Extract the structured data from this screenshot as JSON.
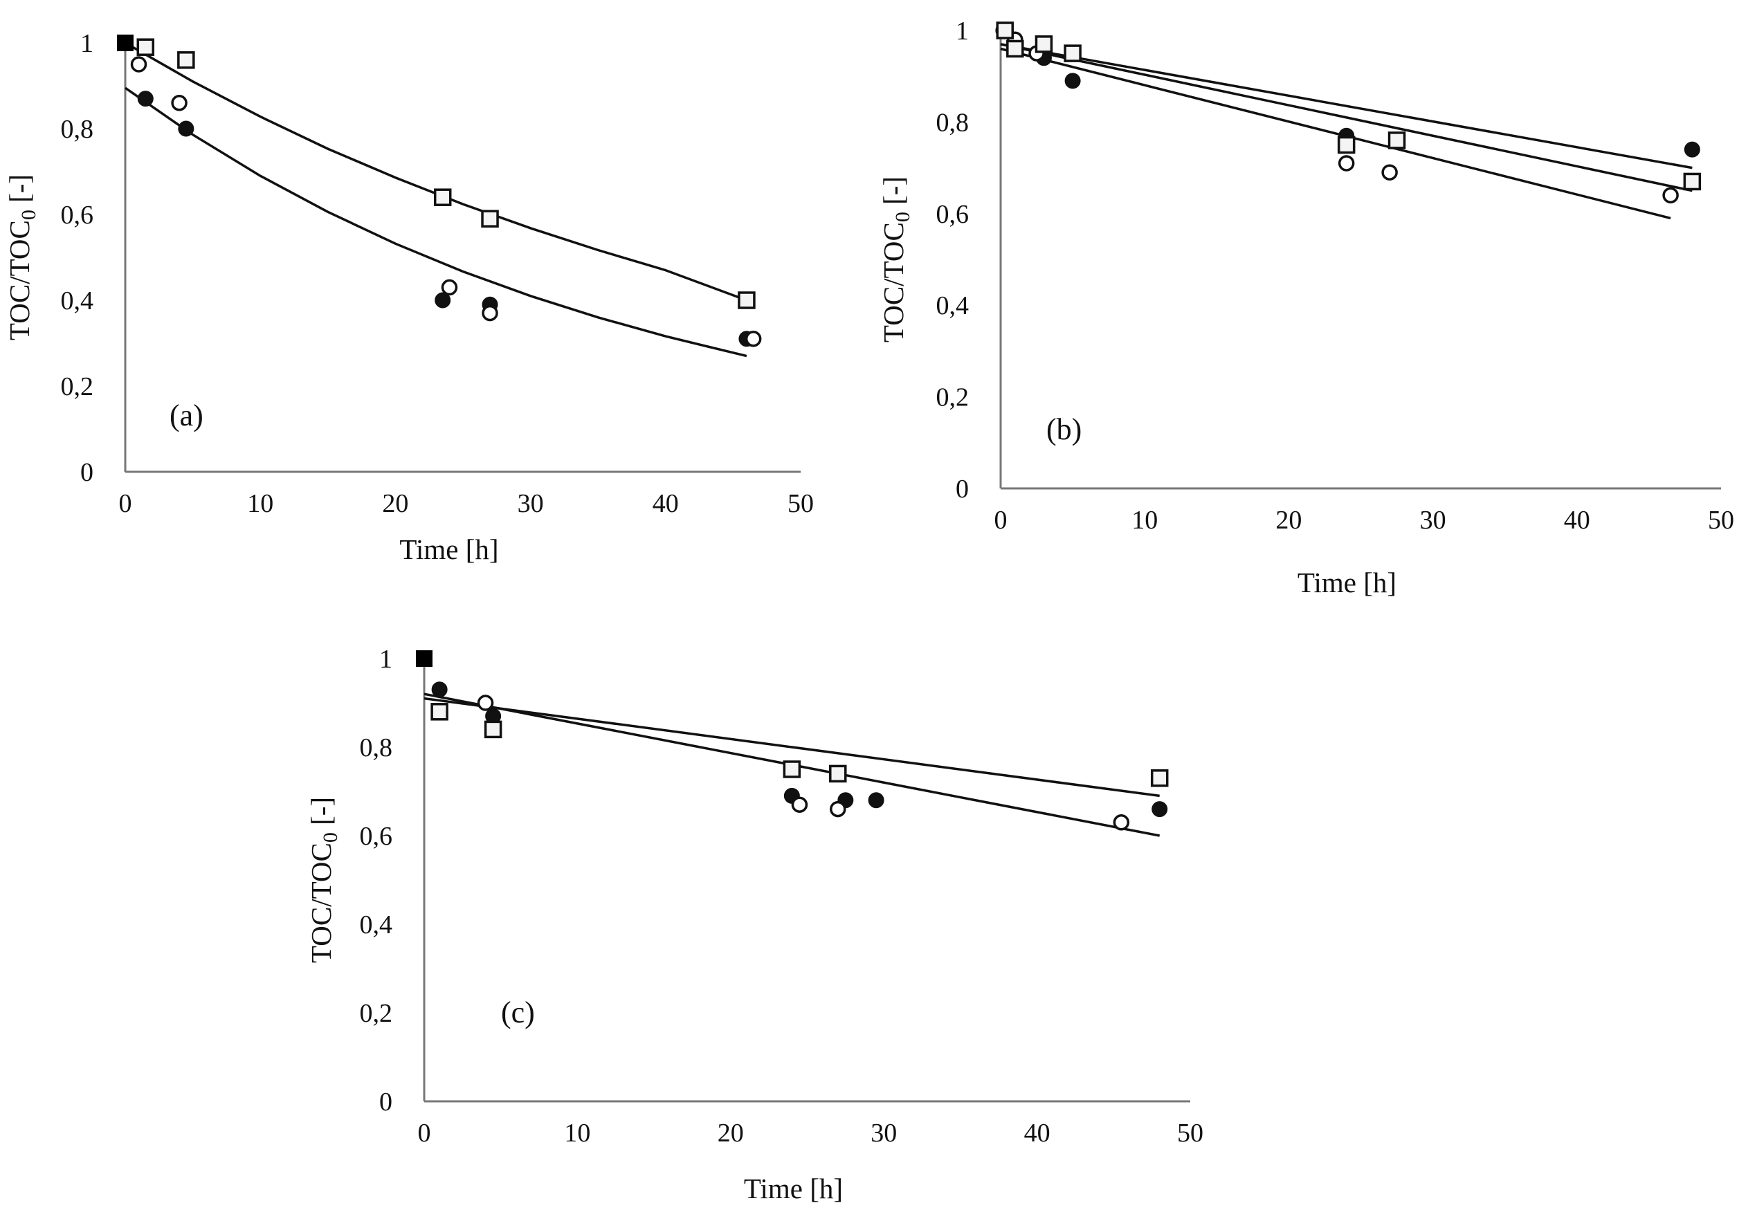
{
  "chart_data": [
    {
      "type": "scatter",
      "panel_label": "(a)",
      "xlabel": "Time [h]",
      "ylabel_main": "TOC/TOC",
      "ylabel_sub": "0",
      "ylabel_tail": " [-]",
      "xlim": [
        0,
        50
      ],
      "ylim": [
        0,
        1
      ],
      "x_ticks": [
        {
          "value": 0,
          "label": "0"
        },
        {
          "value": 10,
          "label": "10"
        },
        {
          "value": 20,
          "label": "20"
        },
        {
          "value": 30,
          "label": "30"
        },
        {
          "value": 40,
          "label": "40"
        },
        {
          "value": 50,
          "label": "50"
        }
      ],
      "y_ticks": [
        {
          "value": 0,
          "label": "0"
        },
        {
          "value": 0.2,
          "label": "0,2"
        },
        {
          "value": 0.4,
          "label": "0,4"
        },
        {
          "value": 0.6,
          "label": "0,6"
        },
        {
          "value": 0.8,
          "label": "0,8"
        },
        {
          "value": 1,
          "label": "1"
        }
      ],
      "series": [
        {
          "name": "filled circles",
          "marker": "circle-filled",
          "x": [
            1.5,
            4.5,
            23.5,
            27,
            46
          ],
          "y": [
            0.87,
            0.8,
            0.4,
            0.39,
            0.31
          ]
        },
        {
          "name": "open circles",
          "marker": "circle-open",
          "x": [
            1,
            4,
            24,
            27,
            46.5
          ],
          "y": [
            0.95,
            0.86,
            0.43,
            0.37,
            0.31
          ]
        },
        {
          "name": "open squares",
          "marker": "square-open",
          "x": [
            1.5,
            4.5,
            23.5,
            27,
            46
          ],
          "y": [
            0.99,
            0.96,
            0.64,
            0.59,
            0.4
          ]
        },
        {
          "name": "initial point",
          "marker": "square-filled",
          "x": [
            0
          ],
          "y": [
            1
          ]
        }
      ],
      "fit_lines": [
        {
          "name": "fit upper",
          "x": [
            0,
            5,
            10,
            15,
            20,
            25,
            30,
            35,
            40,
            46
          ],
          "y": [
            1.0,
            0.91,
            0.828,
            0.753,
            0.686,
            0.624,
            0.568,
            0.517,
            0.47,
            0.4
          ]
        },
        {
          "name": "fit lower",
          "x": [
            0,
            5,
            10,
            15,
            20,
            25,
            30,
            35,
            40,
            46
          ],
          "y": [
            0.895,
            0.786,
            0.69,
            0.606,
            0.532,
            0.467,
            0.41,
            0.36,
            0.316,
            0.27
          ]
        }
      ]
    },
    {
      "type": "scatter",
      "panel_label": "(b)",
      "xlabel": "Time [h]",
      "ylabel_main": "TOC/TOC",
      "ylabel_sub": "0",
      "ylabel_tail": " [-]",
      "xlim": [
        0,
        50
      ],
      "ylim": [
        0,
        1
      ],
      "x_ticks": [
        {
          "value": 0,
          "label": "0"
        },
        {
          "value": 10,
          "label": "10"
        },
        {
          "value": 20,
          "label": "20"
        },
        {
          "value": 30,
          "label": "30"
        },
        {
          "value": 40,
          "label": "40"
        },
        {
          "value": 50,
          "label": "50"
        }
      ],
      "y_ticks": [
        {
          "value": 0,
          "label": "0"
        },
        {
          "value": 0.2,
          "label": "0,2"
        },
        {
          "value": 0.4,
          "label": "0,4"
        },
        {
          "value": 0.6,
          "label": "0,6"
        },
        {
          "value": 0.8,
          "label": "0,8"
        },
        {
          "value": 1,
          "label": "1"
        }
      ],
      "series": [
        {
          "name": "filled circles",
          "marker": "circle-filled",
          "x": [
            1,
            3,
            5,
            24,
            48
          ],
          "y": [
            0.96,
            0.94,
            0.89,
            0.77,
            0.74
          ]
        },
        {
          "name": "open circles",
          "marker": "circle-open",
          "x": [
            0.2,
            1,
            2.5,
            24,
            27,
            46.5
          ],
          "y": [
            1.0,
            0.98,
            0.95,
            0.71,
            0.69,
            0.64
          ]
        },
        {
          "name": "open squares",
          "marker": "square-open",
          "x": [
            0.3,
            1,
            3,
            5,
            24,
            27.5,
            48
          ],
          "y": [
            1.0,
            0.96,
            0.97,
            0.95,
            0.75,
            0.76,
            0.67
          ]
        }
      ],
      "fit_lines": [
        {
          "name": "fit 1",
          "x": [
            0,
            48
          ],
          "y": [
            0.97,
            0.7
          ]
        },
        {
          "name": "fit 2",
          "x": [
            0,
            48
          ],
          "y": [
            0.97,
            0.65
          ]
        },
        {
          "name": "fit 3",
          "x": [
            0,
            46.5
          ],
          "y": [
            0.96,
            0.59
          ]
        }
      ]
    },
    {
      "type": "scatter",
      "panel_label": "(c)",
      "xlabel": "Time [h]",
      "ylabel_main": "TOC/TOC",
      "ylabel_sub": "0",
      "ylabel_tail": " [-]",
      "xlim": [
        0,
        50
      ],
      "ylim": [
        0,
        1
      ],
      "x_ticks": [
        {
          "value": 0,
          "label": "0"
        },
        {
          "value": 10,
          "label": "10"
        },
        {
          "value": 20,
          "label": "20"
        },
        {
          "value": 30,
          "label": "30"
        },
        {
          "value": 40,
          "label": "40"
        },
        {
          "value": 50,
          "label": "50"
        }
      ],
      "y_ticks": [
        {
          "value": 0,
          "label": "0"
        },
        {
          "value": 0.2,
          "label": "0,2"
        },
        {
          "value": 0.4,
          "label": "0,4"
        },
        {
          "value": 0.6,
          "label": "0,6"
        },
        {
          "value": 0.8,
          "label": "0,8"
        },
        {
          "value": 1,
          "label": "1"
        }
      ],
      "series": [
        {
          "name": "filled circles",
          "marker": "circle-filled",
          "x": [
            1,
            4.5,
            24,
            27.5,
            29.5,
            48
          ],
          "y": [
            0.93,
            0.87,
            0.69,
            0.68,
            0.68,
            0.66
          ]
        },
        {
          "name": "open circles",
          "marker": "circle-open",
          "x": [
            4,
            24.5,
            27,
            45.5
          ],
          "y": [
            0.9,
            0.67,
            0.66,
            0.63
          ]
        },
        {
          "name": "open squares",
          "marker": "square-open",
          "x": [
            1,
            4.5,
            24,
            27,
            48
          ],
          "y": [
            0.88,
            0.84,
            0.75,
            0.74,
            0.73
          ]
        },
        {
          "name": "initial point",
          "marker": "square-filled",
          "x": [
            0
          ],
          "y": [
            1
          ]
        }
      ],
      "fit_lines": [
        {
          "name": "fit upper",
          "x": [
            0,
            48
          ],
          "y": [
            0.91,
            0.69
          ]
        },
        {
          "name": "fit lower",
          "x": [
            0,
            48
          ],
          "y": [
            0.92,
            0.6
          ]
        }
      ]
    }
  ]
}
